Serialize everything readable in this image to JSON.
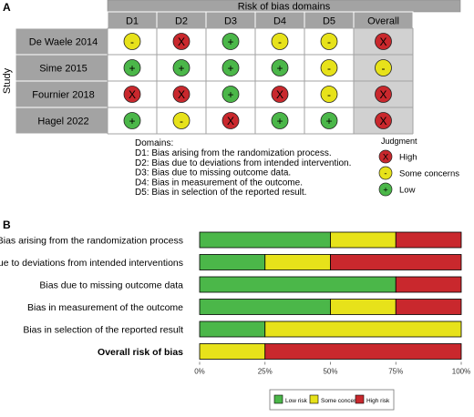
{
  "panel_a": {
    "panel_label": "A",
    "title": "Risk of bias domains",
    "y_axis_label": "Study",
    "domain_headers": [
      "D1",
      "D2",
      "D3",
      "D4",
      "D5",
      "Overall"
    ],
    "studies": [
      {
        "name": "De Waele 2014",
        "judgments": [
          "some",
          "high",
          "low",
          "some",
          "some",
          "high"
        ]
      },
      {
        "name": "Sime 2015",
        "judgments": [
          "low",
          "low",
          "low",
          "low",
          "some",
          "some"
        ]
      },
      {
        "name": "Fournier 2018",
        "judgments": [
          "high",
          "high",
          "low",
          "high",
          "some",
          "high"
        ]
      },
      {
        "name": "Hagel 2022",
        "judgments": [
          "low",
          "some",
          "high",
          "low",
          "low",
          "high"
        ]
      }
    ],
    "symbols": {
      "high": "X",
      "some": "-",
      "low": "+"
    },
    "colors": {
      "high": "#c9282d",
      "some": "#e7e21a",
      "low": "#4bb749",
      "header_bg": "#a3a3a3",
      "overall_bg": "#d1d1d1"
    },
    "domains_title": "Domains:",
    "domain_descriptions": [
      "D1: Bias arising from the randomization process.",
      "D2: Bias due to deviations from intended intervention.",
      "D3: Bias due to missing outcome data.",
      "D4: Bias in measurement of the outcome.",
      "D5: Bias in selection of the reported result."
    ],
    "judgment_title": "Judgment",
    "judgment_legend": [
      {
        "key": "high",
        "label": "High"
      },
      {
        "key": "some",
        "label": "Some concerns"
      },
      {
        "key": "low",
        "label": "Low"
      }
    ]
  },
  "chart_data": {
    "type": "bar",
    "orientation": "horizontal",
    "stacked": true,
    "panel_label": "B",
    "categories": [
      "Bias arising from the randomization process",
      "Bias due to deviations from intended interventions",
      "Bias due to missing outcome data",
      "Bias in measurement of the outcome",
      "Bias in selection of the reported result",
      "Overall risk of bias"
    ],
    "bold_categories": [
      "Overall risk of bias"
    ],
    "series": [
      {
        "name": "Low risk",
        "color": "#4bb749",
        "values": [
          50,
          25,
          75,
          50,
          25,
          0
        ]
      },
      {
        "name": "Some concerns",
        "color": "#e7e21a",
        "values": [
          25,
          25,
          0,
          25,
          75,
          25
        ]
      },
      {
        "name": "High risk",
        "color": "#c9282d",
        "values": [
          25,
          50,
          25,
          25,
          0,
          75
        ]
      }
    ],
    "xlim": [
      0,
      100
    ],
    "xticks": [
      0,
      25,
      50,
      75,
      100
    ],
    "xtick_labels": [
      "0%",
      "25%",
      "50%",
      "75%",
      "100%"
    ],
    "legend_position": "bottom"
  }
}
